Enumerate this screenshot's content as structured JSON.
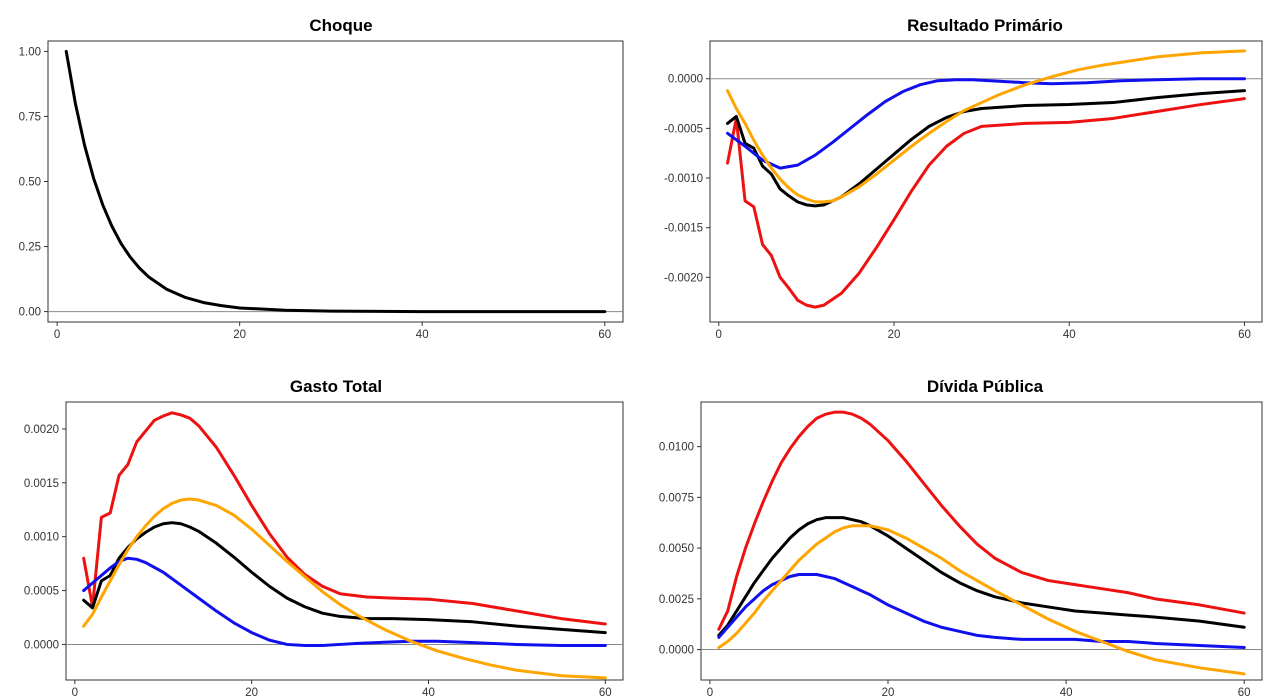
{
  "colors": {
    "black": "#000000",
    "red": "#ee1111",
    "blue": "#1010ee",
    "orange": "#ffa500"
  },
  "chart_data": [
    {
      "type": "line",
      "title": "Choque",
      "xlabel": "",
      "ylabel": "",
      "xlim": [
        -1,
        62
      ],
      "ylim": [
        -0.04,
        1.04
      ],
      "x_ticks": [
        0,
        20,
        40,
        60
      ],
      "x_tick_labels": [
        "0",
        "20",
        "40",
        "60"
      ],
      "y_ticks": [
        0,
        0.25,
        0.5,
        0.75,
        1.0
      ],
      "y_tick_labels": [
        "0.00",
        "0.25",
        "0.50",
        "0.75",
        "1.00"
      ],
      "grid": false,
      "hline": 0,
      "series": [
        {
          "color": "black",
          "x": [
            1,
            2,
            3,
            4,
            5,
            6,
            7,
            8,
            9,
            10,
            12,
            14,
            16,
            18,
            20,
            25,
            30,
            40,
            50,
            60
          ],
          "y": [
            1.0,
            0.8,
            0.64,
            0.512,
            0.41,
            0.328,
            0.262,
            0.21,
            0.168,
            0.134,
            0.086,
            0.055,
            0.035,
            0.023,
            0.014,
            0.005,
            0.002,
            0.0,
            0.0,
            0.0
          ]
        }
      ]
    },
    {
      "type": "line",
      "title": "Resultado Primário",
      "xlabel": "",
      "ylabel": "",
      "xlim": [
        -1,
        62
      ],
      "ylim": [
        -0.00245,
        0.00038
      ],
      "x_ticks": [
        0,
        20,
        40,
        60
      ],
      "x_tick_labels": [
        "0",
        "20",
        "40",
        "60"
      ],
      "y_ticks": [
        -0.002,
        -0.0015,
        -0.001,
        -0.0005,
        0.0
      ],
      "y_tick_labels": [
        "-0.0020",
        "-0.0015",
        "-0.0010",
        "-0.0005",
        "0.0000"
      ],
      "grid": false,
      "hline": 0,
      "series": [
        {
          "color": "red",
          "x": [
            1,
            2,
            3,
            4,
            5,
            6,
            7,
            8,
            9,
            10,
            11,
            12,
            14,
            16,
            18,
            20,
            22,
            24,
            26,
            28,
            30,
            35,
            40,
            45,
            50,
            55,
            60
          ],
          "y": [
            -0.00085,
            -0.0004,
            -0.00123,
            -0.00129,
            -0.00167,
            -0.00178,
            -0.002,
            -0.00211,
            -0.00223,
            -0.00228,
            -0.0023,
            -0.00228,
            -0.00216,
            -0.00196,
            -0.0017,
            -0.00142,
            -0.00113,
            -0.00087,
            -0.00068,
            -0.00055,
            -0.00048,
            -0.00045,
            -0.00044,
            -0.0004,
            -0.00033,
            -0.00026,
            -0.0002
          ]
        },
        {
          "color": "black",
          "x": [
            1,
            2,
            3,
            4,
            5,
            6,
            7,
            8,
            9,
            10,
            11,
            12,
            14,
            16,
            18,
            20,
            22,
            24,
            26,
            28,
            30,
            35,
            40,
            45,
            50,
            55,
            60
          ],
          "y": [
            -0.00045,
            -0.00038,
            -0.00065,
            -0.0007,
            -0.00088,
            -0.00096,
            -0.00111,
            -0.00118,
            -0.00124,
            -0.00127,
            -0.00128,
            -0.00127,
            -0.00119,
            -0.00106,
            -0.00091,
            -0.00076,
            -0.00061,
            -0.00048,
            -0.00039,
            -0.00033,
            -0.0003,
            -0.00027,
            -0.00026,
            -0.00024,
            -0.00019,
            -0.00015,
            -0.00012
          ]
        },
        {
          "color": "blue",
          "x": [
            1,
            3,
            5,
            7,
            9,
            11,
            13,
            15,
            17,
            19,
            21,
            23,
            25,
            27,
            29,
            31,
            33,
            35,
            38,
            42,
            46,
            50,
            55,
            60
          ],
          "y": [
            -0.00055,
            -0.00068,
            -0.00082,
            -0.0009,
            -0.00087,
            -0.00077,
            -0.00064,
            -0.0005,
            -0.00036,
            -0.00023,
            -0.00013,
            -6e-05,
            -2e-05,
            -1e-05,
            -1e-05,
            -2e-05,
            -3e-05,
            -4e-05,
            -5e-05,
            -4e-05,
            -2e-05,
            -1e-05,
            0.0,
            0.0
          ]
        },
        {
          "color": "orange",
          "x": [
            1,
            2,
            3,
            4,
            5,
            6,
            7,
            8,
            9,
            10,
            11,
            12,
            13,
            14,
            16,
            18,
            20,
            22,
            24,
            26,
            28,
            30,
            32,
            35,
            38,
            41,
            44,
            47,
            50,
            55,
            60
          ],
          "y": [
            -0.00012,
            -0.0003,
            -0.00045,
            -0.00062,
            -0.00077,
            -0.0009,
            -0.00101,
            -0.0011,
            -0.00117,
            -0.00121,
            -0.00124,
            -0.00124,
            -0.00123,
            -0.00119,
            -0.00109,
            -0.00096,
            -0.00082,
            -0.00068,
            -0.00055,
            -0.00043,
            -0.00032,
            -0.00024,
            -0.00016,
            -6e-05,
            2e-05,
            9e-05,
            0.00014,
            0.00018,
            0.00022,
            0.00026,
            0.00028
          ]
        }
      ]
    },
    {
      "type": "line",
      "title": "Gasto Total",
      "xlabel": "",
      "ylabel": "",
      "xlim": [
        -1,
        62
      ],
      "ylim": [
        -0.00033,
        0.00225
      ],
      "x_ticks": [
        0,
        20,
        40,
        60
      ],
      "x_tick_labels": [
        "0",
        "20",
        "40",
        "60"
      ],
      "y_ticks": [
        0.0,
        0.0005,
        0.001,
        0.0015,
        0.002
      ],
      "y_tick_labels": [
        "0.0000",
        "0.0005",
        "0.0010",
        "0.0015",
        "0.0020"
      ],
      "grid": false,
      "hline": 0,
      "series": [
        {
          "color": "red",
          "x": [
            1,
            2,
            3,
            4,
            5,
            6,
            7,
            8,
            9,
            10,
            11,
            12,
            13,
            14,
            16,
            18,
            20,
            22,
            24,
            26,
            28,
            30,
            33,
            36,
            40,
            45,
            50,
            55,
            60
          ],
          "y": [
            0.0008,
            0.00035,
            0.00118,
            0.00122,
            0.00157,
            0.00167,
            0.00188,
            0.00198,
            0.00208,
            0.00212,
            0.00215,
            0.00213,
            0.0021,
            0.00203,
            0.00183,
            0.00157,
            0.00129,
            0.00103,
            0.00081,
            0.00065,
            0.00054,
            0.00047,
            0.00044,
            0.00043,
            0.00042,
            0.00038,
            0.00031,
            0.00024,
            0.00019
          ]
        },
        {
          "color": "black",
          "x": [
            1,
            2,
            3,
            4,
            5,
            6,
            7,
            8,
            9,
            10,
            11,
            12,
            13,
            14,
            16,
            18,
            20,
            22,
            24,
            26,
            28,
            30,
            33,
            36,
            40,
            45,
            50,
            55,
            60
          ],
          "y": [
            0.00041,
            0.00034,
            0.00059,
            0.00064,
            0.0008,
            0.0009,
            0.00098,
            0.00104,
            0.00109,
            0.00112,
            0.00113,
            0.00112,
            0.00109,
            0.00105,
            0.00094,
            0.00081,
            0.00067,
            0.00054,
            0.00043,
            0.00035,
            0.00029,
            0.00026,
            0.00024,
            0.00024,
            0.00023,
            0.00021,
            0.00017,
            0.00014,
            0.00011
          ]
        },
        {
          "color": "blue",
          "x": [
            1,
            2,
            3,
            4,
            5,
            6,
            7,
            8,
            10,
            12,
            14,
            16,
            18,
            20,
            22,
            24,
            26,
            28,
            30,
            32,
            35,
            38,
            41,
            44,
            47,
            50,
            55,
            60
          ],
          "y": [
            0.0005,
            0.00057,
            0.00064,
            0.00071,
            0.00077,
            0.0008,
            0.00079,
            0.00076,
            0.00067,
            0.00055,
            0.00043,
            0.00031,
            0.0002,
            0.00011,
            4e-05,
            0.0,
            -1e-05,
            -1e-05,
            0.0,
            1e-05,
            2e-05,
            3e-05,
            3e-05,
            2e-05,
            1e-05,
            0.0,
            -1e-05,
            -1e-05
          ]
        },
        {
          "color": "orange",
          "x": [
            1,
            2,
            3,
            4,
            5,
            6,
            7,
            8,
            9,
            10,
            11,
            12,
            13,
            14,
            16,
            18,
            20,
            22,
            24,
            26,
            28,
            30,
            32,
            35,
            38,
            41,
            44,
            47,
            50,
            55,
            60
          ],
          "y": [
            0.00017,
            0.00028,
            0.00044,
            0.00059,
            0.00074,
            0.00088,
            0.001,
            0.0011,
            0.00119,
            0.00126,
            0.00131,
            0.00134,
            0.00135,
            0.00134,
            0.00129,
            0.0012,
            0.00107,
            0.00092,
            0.00077,
            0.00063,
            0.00049,
            0.00037,
            0.00027,
            0.00014,
            3e-05,
            -6e-05,
            -0.00013,
            -0.00019,
            -0.00024,
            -0.00029,
            -0.00031
          ]
        }
      ]
    },
    {
      "type": "line",
      "title": "Dívida Pública",
      "xlabel": "",
      "ylabel": "",
      "xlim": [
        -1,
        62
      ],
      "ylim": [
        -0.0015,
        0.0122
      ],
      "x_ticks": [
        0,
        20,
        40,
        60
      ],
      "x_tick_labels": [
        "0",
        "20",
        "40",
        "60"
      ],
      "y_ticks": [
        0.0,
        0.0025,
        0.005,
        0.0075,
        0.01
      ],
      "y_tick_labels": [
        "0.0000",
        "0.0025",
        "0.0050",
        "0.0075",
        "0.0100"
      ],
      "grid": false,
      "hline": 0,
      "series": [
        {
          "color": "red",
          "x": [
            1,
            2,
            3,
            4,
            5,
            6,
            7,
            8,
            9,
            10,
            11,
            12,
            13,
            14,
            15,
            16,
            17,
            18,
            20,
            22,
            24,
            26,
            28,
            30,
            32,
            35,
            38,
            41,
            44,
            47,
            50,
            55,
            60
          ],
          "y": [
            0.001,
            0.0019,
            0.0036,
            0.005,
            0.0062,
            0.0073,
            0.0083,
            0.0092,
            0.0099,
            0.0105,
            0.011,
            0.0114,
            0.0116,
            0.0117,
            0.0117,
            0.0116,
            0.0114,
            0.0111,
            0.0103,
            0.0093,
            0.0082,
            0.0071,
            0.0061,
            0.0052,
            0.0045,
            0.0038,
            0.0034,
            0.0032,
            0.003,
            0.0028,
            0.0025,
            0.0022,
            0.0018
          ]
        },
        {
          "color": "black",
          "x": [
            1,
            2,
            3,
            4,
            5,
            6,
            7,
            8,
            9,
            10,
            11,
            12,
            13,
            14,
            15,
            16,
            17,
            18,
            20,
            22,
            24,
            26,
            28,
            30,
            32,
            35,
            38,
            41,
            44,
            47,
            50,
            55,
            60
          ],
          "y": [
            0.0007,
            0.0012,
            0.0019,
            0.0026,
            0.0033,
            0.0039,
            0.0045,
            0.005,
            0.0055,
            0.0059,
            0.0062,
            0.0064,
            0.0065,
            0.0065,
            0.0065,
            0.0064,
            0.0063,
            0.0061,
            0.0056,
            0.005,
            0.0044,
            0.0038,
            0.0033,
            0.0029,
            0.0026,
            0.0023,
            0.0021,
            0.0019,
            0.0018,
            0.0017,
            0.0016,
            0.0014,
            0.0011
          ]
        },
        {
          "color": "blue",
          "x": [
            1,
            2,
            3,
            4,
            5,
            6,
            7,
            8,
            9,
            10,
            11,
            12,
            13,
            14,
            15,
            16,
            17,
            18,
            20,
            22,
            24,
            26,
            28,
            30,
            32,
            35,
            38,
            41,
            44,
            47,
            50,
            55,
            60
          ],
          "y": [
            0.0006,
            0.0011,
            0.0016,
            0.0021,
            0.0025,
            0.0029,
            0.0032,
            0.0034,
            0.0036,
            0.0037,
            0.0037,
            0.0037,
            0.0036,
            0.0035,
            0.0033,
            0.0031,
            0.0029,
            0.0027,
            0.0022,
            0.0018,
            0.0014,
            0.0011,
            0.0009,
            0.0007,
            0.0006,
            0.0005,
            0.0005,
            0.0005,
            0.0004,
            0.0004,
            0.0003,
            0.0002,
            0.0001
          ]
        },
        {
          "color": "orange",
          "x": [
            1,
            2,
            3,
            4,
            5,
            6,
            7,
            8,
            9,
            10,
            11,
            12,
            13,
            14,
            15,
            16,
            17,
            18,
            20,
            22,
            24,
            26,
            28,
            30,
            32,
            35,
            38,
            41,
            44,
            47,
            50,
            55,
            60
          ],
          "y": [
            0.0001,
            0.0004,
            0.0008,
            0.0013,
            0.0018,
            0.0024,
            0.0029,
            0.0034,
            0.0039,
            0.0044,
            0.0048,
            0.0052,
            0.0055,
            0.0058,
            0.006,
            0.0061,
            0.0061,
            0.0061,
            0.0059,
            0.0055,
            0.005,
            0.0045,
            0.0039,
            0.0034,
            0.0029,
            0.0022,
            0.0015,
            0.0009,
            0.0004,
            -0.0001,
            -0.0005,
            -0.0009,
            -0.0012
          ]
        }
      ]
    }
  ]
}
